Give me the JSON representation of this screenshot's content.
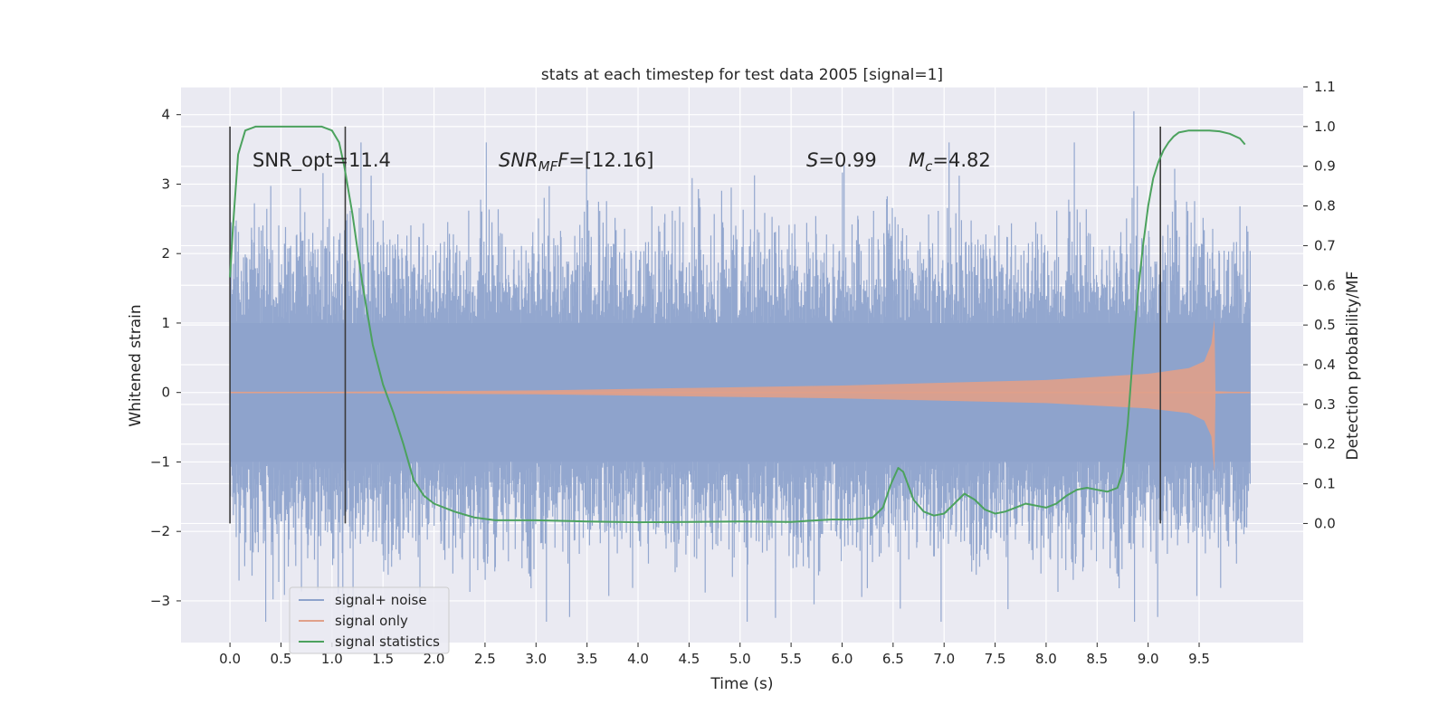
{
  "chart_data": {
    "type": "line",
    "title": "stats at each timestep for test data 2005 [signal=1]",
    "xlabel": "Time (s)",
    "ylabel_left": "Whitened strain",
    "ylabel_right": "Detection probability/MF",
    "xlim": [
      -0.48,
      10.52
    ],
    "ylim_left": [
      -3.6,
      4.4
    ],
    "ylim_right": [
      -0.3,
      1.1
    ],
    "xticks": [
      "0.0",
      "0.5",
      "1.0",
      "1.5",
      "2.0",
      "2.5",
      "3.0",
      "3.5",
      "4.0",
      "4.5",
      "5.0",
      "5.5",
      "6.0",
      "6.5",
      "7.0",
      "7.5",
      "8.0",
      "8.5",
      "9.0",
      "9.5"
    ],
    "yticks_left": [
      "−3",
      "−2",
      "−1",
      "0",
      "1",
      "2",
      "3",
      "4"
    ],
    "yticks_right": [
      "0.0",
      "0.1",
      "0.2",
      "0.3",
      "0.4",
      "0.5",
      "0.6",
      "0.7",
      "0.8",
      "0.9",
      "1.0",
      "1.1"
    ],
    "grid": true,
    "legend_position": "lower-left",
    "annotations": {
      "snr_opt": "SNR_opt=11.4",
      "snr_mf_name": "SNR",
      "snr_mf_sub": "MF",
      "snr_mf_value": "=[12.16]",
      "s_name": "S",
      "s_value": "=0.99",
      "mc_name": "M",
      "mc_sub": "c",
      "mc_value": "=4.82"
    },
    "vertical_lines_x": [
      0.0,
      1.13,
      9.12
    ],
    "series": [
      {
        "name": "signal+ noise",
        "color": "#8ea3cc",
        "style": "dense noise, roughly Gaussian amplitude ~±1.5 with spikes up to 4.05 at 8.86 s",
        "x_range": [
          0.0,
          10.0
        ]
      },
      {
        "name": "signal only",
        "color": "#e0a08a",
        "style": "chirp with growing envelope, peak ~±1.05 near 9.65 s",
        "envelope": [
          [
            0.0,
            0.0
          ],
          [
            3.0,
            0.03
          ],
          [
            6.0,
            0.1
          ],
          [
            8.0,
            0.18
          ],
          [
            9.0,
            0.27
          ],
          [
            9.4,
            0.35
          ],
          [
            9.55,
            0.45
          ],
          [
            9.62,
            0.7
          ],
          [
            9.65,
            1.05
          ],
          [
            9.66,
            0.02
          ],
          [
            10.0,
            0.0
          ]
        ]
      },
      {
        "name": "signal statistics",
        "color": "#4ca25e",
        "axis": "right",
        "x": [
          0.0,
          0.03,
          0.08,
          0.15,
          0.25,
          0.5,
          0.75,
          0.9,
          1.0,
          1.07,
          1.12,
          1.2,
          1.3,
          1.4,
          1.5,
          1.6,
          1.7,
          1.8,
          1.9,
          2.0,
          2.2,
          2.4,
          2.6,
          3.0,
          3.5,
          4.0,
          4.5,
          5.0,
          5.5,
          5.9,
          6.1,
          6.3,
          6.4,
          6.48,
          6.55,
          6.6,
          6.7,
          6.8,
          6.9,
          7.0,
          7.1,
          7.2,
          7.3,
          7.4,
          7.5,
          7.6,
          7.7,
          7.8,
          7.9,
          8.0,
          8.1,
          8.2,
          8.3,
          8.4,
          8.5,
          8.6,
          8.7,
          8.75,
          8.8,
          8.85,
          8.9,
          8.95,
          9.0,
          9.05,
          9.1,
          9.15,
          9.2,
          9.25,
          9.3,
          9.4,
          9.5,
          9.6,
          9.7,
          9.8,
          9.9,
          9.95
        ],
        "y": [
          0.62,
          0.75,
          0.93,
          0.99,
          1.0,
          1.0,
          1.0,
          1.0,
          0.99,
          0.96,
          0.9,
          0.78,
          0.6,
          0.45,
          0.35,
          0.28,
          0.2,
          0.11,
          0.07,
          0.05,
          0.03,
          0.015,
          0.008,
          0.008,
          0.005,
          0.003,
          0.004,
          0.005,
          0.004,
          0.01,
          0.01,
          0.015,
          0.04,
          0.1,
          0.14,
          0.13,
          0.06,
          0.03,
          0.02,
          0.025,
          0.05,
          0.075,
          0.06,
          0.035,
          0.025,
          0.03,
          0.04,
          0.05,
          0.045,
          0.04,
          0.05,
          0.07,
          0.085,
          0.09,
          0.085,
          0.08,
          0.09,
          0.13,
          0.25,
          0.42,
          0.58,
          0.7,
          0.8,
          0.87,
          0.91,
          0.94,
          0.96,
          0.975,
          0.985,
          0.99,
          0.99,
          0.99,
          0.988,
          0.982,
          0.97,
          0.955
        ]
      }
    ]
  }
}
